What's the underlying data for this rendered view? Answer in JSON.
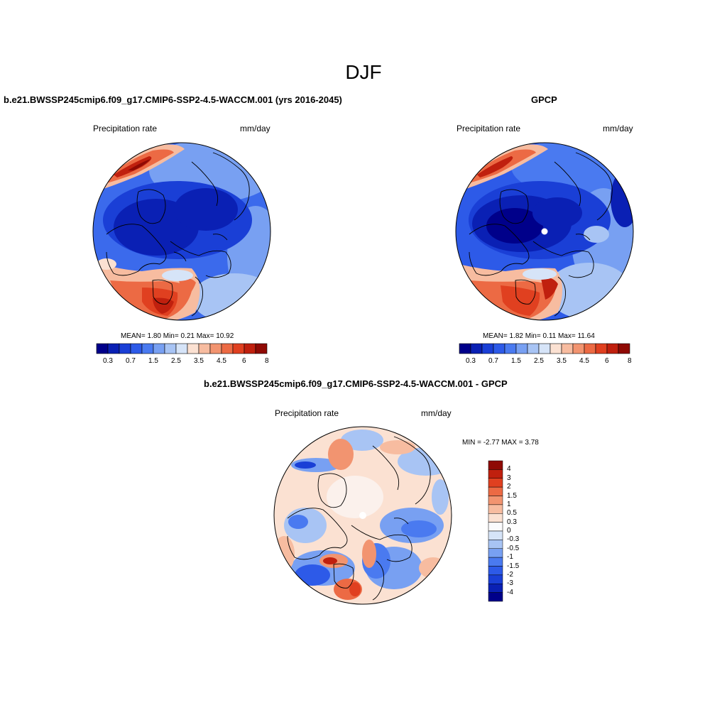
{
  "figure": {
    "title": "DJF"
  },
  "panels": {
    "model": {
      "title": "b.e21.BWSSP245cmip6.f09_g17.CMIP6-SSP2-4.5-WACCM.001 (yrs 2016-2045)",
      "left_label": "Precipitation rate",
      "right_label": "mm/day",
      "stats": "MEAN=   1.80  Min=    0.21  Max=  10.92"
    },
    "obs": {
      "title": "GPCP",
      "left_label": "Precipitation rate",
      "right_label": "mm/day",
      "stats": "MEAN=   1.82  Min=    0.11  Max=  11.64"
    },
    "diff": {
      "title": "b.e21.BWSSP245cmip6.f09_g17.CMIP6-SSP2-4.5-WACCM.001 - GPCP",
      "left_label": "Precipitation rate",
      "right_label": "mm/day",
      "stats": "MIN =   -2.77 MAX =    3.78"
    }
  },
  "colors": {
    "precip_scale": [
      "#00008a",
      "#0a20b4",
      "#1a3fd6",
      "#2d5ae8",
      "#4a7af0",
      "#78a0f2",
      "#a8c4f4",
      "#d6e4f8",
      "#fbe1d2",
      "#f7bca0",
      "#f29470",
      "#ec6a44",
      "#e04020",
      "#c0200e",
      "#8f0a04"
    ],
    "diff_scale": [
      "#00008a",
      "#0a20b4",
      "#1a3fd6",
      "#2d5ae8",
      "#4a7af0",
      "#78a0f2",
      "#a8c4f4",
      "#d6e4f8",
      "#fbfbfd",
      "#fbe1d2",
      "#f7bca0",
      "#f29470",
      "#ec6a44",
      "#e04020",
      "#c0200e",
      "#8f0a04"
    ]
  },
  "chart_data": [
    {
      "type": "heatmap",
      "projection": "north polar stereographic",
      "panel": "model",
      "colorbar_labels": [
        "0.3",
        "0.7",
        "1.5",
        "2.5",
        "3.5",
        "4.5",
        "6",
        "8"
      ],
      "levels": [
        0.2,
        0.3,
        0.5,
        0.7,
        1,
        1.5,
        2,
        2.5,
        3,
        3.5,
        4,
        4.5,
        5,
        6,
        7,
        8
      ],
      "mean": 1.8,
      "min": 0.21,
      "max": 10.92
    },
    {
      "type": "heatmap",
      "projection": "north polar stereographic",
      "panel": "obs",
      "colorbar_labels": [
        "0.3",
        "0.7",
        "1.5",
        "2.5",
        "3.5",
        "4.5",
        "6",
        "8"
      ],
      "levels": [
        0.2,
        0.3,
        0.5,
        0.7,
        1,
        1.5,
        2,
        2.5,
        3,
        3.5,
        4,
        4.5,
        5,
        6,
        7,
        8
      ],
      "mean": 1.82,
      "min": 0.11,
      "max": 11.64
    },
    {
      "type": "heatmap",
      "projection": "north polar stereographic",
      "panel": "diff",
      "colorbar_labels": [
        "4",
        "3",
        "2",
        "1.5",
        "1",
        "0.5",
        "0.3",
        "0",
        "-0.3",
        "-0.5",
        "-1",
        "-1.5",
        "-2",
        "-3",
        "-4"
      ],
      "min": -2.77,
      "max": 3.78
    }
  ]
}
